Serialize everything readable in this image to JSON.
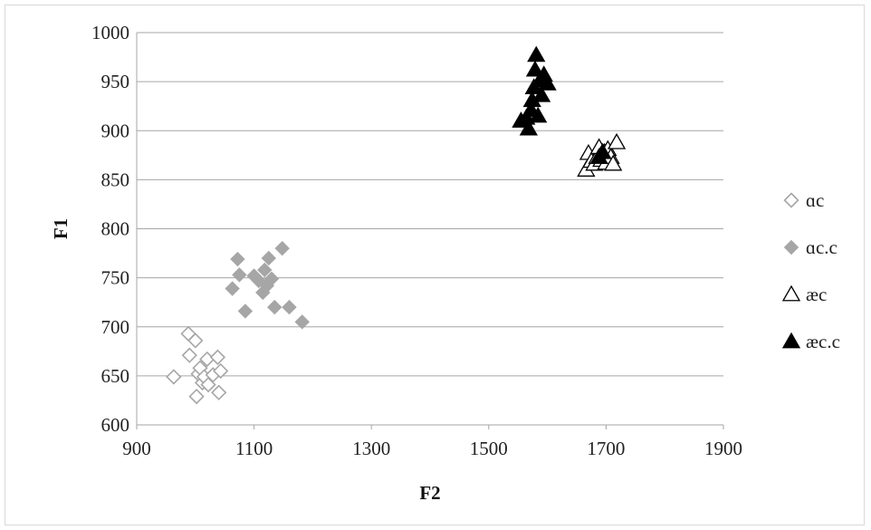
{
  "chart_data": {
    "type": "scatter",
    "title": "",
    "xlabel": "F2",
    "ylabel": "F1",
    "xlim": [
      900,
      1900
    ],
    "ylim": [
      600,
      1000
    ],
    "xticks": [
      900,
      1100,
      1300,
      1500,
      1700,
      1900
    ],
    "yticks": [
      600,
      650,
      700,
      750,
      800,
      850,
      900,
      950,
      1000
    ],
    "grid": "horizontal",
    "legend_position": "right",
    "series": [
      {
        "name": "ɑc",
        "marker": "diamond-open",
        "color": "#a6a6a6",
        "points": [
          [
            963,
            649
          ],
          [
            988,
            693
          ],
          [
            990,
            671
          ],
          [
            1000,
            686
          ],
          [
            1002,
            629
          ],
          [
            1005,
            652
          ],
          [
            1008,
            658
          ],
          [
            1012,
            643
          ],
          [
            1015,
            649
          ],
          [
            1020,
            667
          ],
          [
            1022,
            641
          ],
          [
            1030,
            651
          ],
          [
            1038,
            669
          ],
          [
            1040,
            633
          ],
          [
            1043,
            655
          ]
        ]
      },
      {
        "name": "ɑc.c",
        "marker": "diamond-filled",
        "color": "#a6a6a6",
        "points": [
          [
            1063,
            739
          ],
          [
            1072,
            769
          ],
          [
            1075,
            753
          ],
          [
            1085,
            716
          ],
          [
            1100,
            752
          ],
          [
            1108,
            747
          ],
          [
            1115,
            735
          ],
          [
            1118,
            758
          ],
          [
            1122,
            742
          ],
          [
            1125,
            770
          ],
          [
            1130,
            749
          ],
          [
            1135,
            720
          ],
          [
            1148,
            780
          ],
          [
            1160,
            720
          ],
          [
            1182,
            705
          ]
        ]
      },
      {
        "name": "æc",
        "marker": "triangle-open",
        "color": "#000000",
        "points": [
          [
            1666,
            860
          ],
          [
            1670,
            877
          ],
          [
            1675,
            869
          ],
          [
            1680,
            866
          ],
          [
            1685,
            873
          ],
          [
            1688,
            883
          ],
          [
            1692,
            870
          ],
          [
            1697,
            878
          ],
          [
            1700,
            867
          ],
          [
            1703,
            881
          ],
          [
            1708,
            873
          ],
          [
            1712,
            866
          ],
          [
            1718,
            888
          ]
        ]
      },
      {
        "name": "æc.c",
        "marker": "triangle-filled",
        "color": "#000000",
        "points": [
          [
            1555,
            910
          ],
          [
            1564,
            913
          ],
          [
            1568,
            902
          ],
          [
            1572,
            921
          ],
          [
            1574,
            931
          ],
          [
            1577,
            944
          ],
          [
            1579,
            962
          ],
          [
            1581,
            977
          ],
          [
            1584,
            915
          ],
          [
            1587,
            951
          ],
          [
            1590,
            936
          ],
          [
            1594,
            957
          ],
          [
            1600,
            948
          ],
          [
            1688,
            873
          ],
          [
            1694,
            878
          ]
        ]
      }
    ]
  }
}
